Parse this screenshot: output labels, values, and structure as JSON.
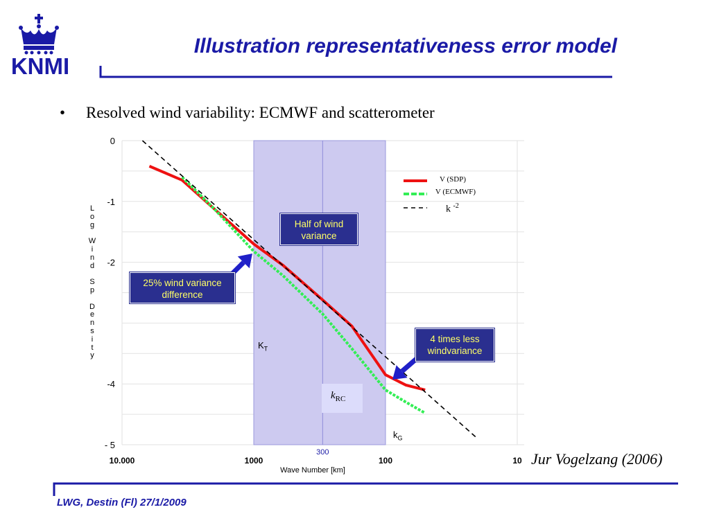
{
  "header": {
    "logo_text": "KNMI",
    "title": "Illustration representativeness error model"
  },
  "bullet": {
    "symbol": "•",
    "text": "Resolved wind variability: ECMWF and scatterometer"
  },
  "chart_data": {
    "type": "line",
    "xlabel": "Wave Number [km]",
    "ylabel": "Log Wind Sp Density",
    "x_scale": "log (reversed)",
    "xlim": [
      10000,
      10
    ],
    "ylim": [
      -5,
      0
    ],
    "x_ticks": [
      {
        "value": 10000,
        "label": "10.000"
      },
      {
        "value": 1000,
        "label": "1000"
      },
      {
        "value": 100,
        "label": "100"
      },
      {
        "value": 10,
        "label": "10"
      }
    ],
    "y_ticks": [
      {
        "value": 0,
        "label": "0"
      },
      {
        "value": -1,
        "label": "-1"
      },
      {
        "value": -2,
        "label": "-2"
      },
      {
        "value": -4,
        "label": "-4"
      },
      {
        "value": -5,
        "label": "- 5"
      }
    ],
    "grid": true,
    "shaded_band": {
      "from": 1000,
      "to": 100,
      "color": "#cdcaf0",
      "mid_line": 300,
      "mid_label": "300"
    },
    "series": [
      {
        "name": "V (SDP)",
        "color": "#ee1111",
        "style": "solid",
        "x": [
          6200,
          3500,
          2000,
          1000,
          600,
          300,
          180,
          100,
          70,
          50
        ],
        "y": [
          -0.42,
          -0.65,
          -1.12,
          -1.7,
          -2.05,
          -2.62,
          -3.05,
          -3.85,
          -4.02,
          -4.1
        ]
      },
      {
        "name": "V (ECMWF)",
        "color": "#33ee55",
        "style": "dotted",
        "x": [
          3500,
          2000,
          1000,
          600,
          300,
          180,
          100,
          70,
          50
        ],
        "y": [
          -0.6,
          -1.12,
          -1.82,
          -2.22,
          -2.85,
          -3.42,
          -4.1,
          -4.3,
          -4.48
        ]
      },
      {
        "name": "k -2",
        "color": "#000000",
        "style": "dashed",
        "x": [
          7000,
          20
        ],
        "y": [
          0.0,
          -4.9
        ]
      }
    ],
    "legend": {
      "sdp": "V (SDP)",
      "ecmwf": "V (ECMWF)",
      "k": "k",
      "k_exp": "-2",
      "position": "top-right"
    },
    "annotations": {
      "half": "Half of wind variance",
      "quarter": "25% wind variance difference",
      "four": "4 times less windvariance",
      "kt": "K",
      "kt_sub": "T",
      "kg": "k",
      "kg_sub": "G",
      "krc": "k",
      "krc_sub": "RC"
    }
  },
  "citation": "Jur Vogelzang (2006)",
  "footer": "LWG, Destin (Fl) 27/1/2009",
  "colors": {
    "brand_blue": "#1a1aa6",
    "callout_bg": "#2a2f8f",
    "callout_text": "#ffff66",
    "band": "#cdcaf0"
  }
}
